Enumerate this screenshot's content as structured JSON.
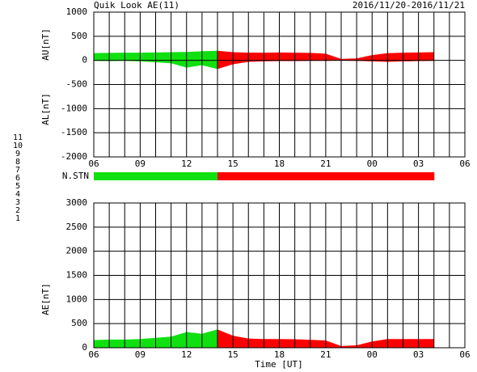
{
  "title": "Quik Look AE(11)",
  "date_range": "2016/11/20-2016/11/21",
  "x_title": "Time [UT]",
  "station_legend": [
    {
      "value": 11,
      "color": "#00d8d8"
    },
    {
      "value": 10,
      "color": "#e000e0"
    },
    {
      "value": 9,
      "color": "#4020c0"
    },
    {
      "value": 8,
      "color": "#e8e070"
    },
    {
      "value": 7,
      "color": "#10e010"
    },
    {
      "value": 6,
      "color": "#ff0000"
    },
    {
      "value": 5,
      "color": "#c8c8c8"
    },
    {
      "value": 4,
      "color": "#909090"
    },
    {
      "value": 3,
      "color": "#20a0a0"
    },
    {
      "value": 2,
      "color": "#a020a0"
    },
    {
      "value": 1,
      "color": "#2020c0"
    }
  ],
  "n_stn": {
    "label": "N.STN",
    "x": [
      6,
      7,
      8,
      9,
      10,
      11,
      12,
      13,
      14,
      15,
      16,
      17,
      18,
      19,
      20,
      21,
      22,
      23,
      24,
      25,
      26,
      27,
      28
    ],
    "values": [
      7,
      7,
      7,
      7,
      7,
      7,
      7,
      7,
      6,
      6,
      6,
      6,
      6,
      6,
      6,
      6,
      6,
      6,
      6,
      6,
      6,
      6,
      6
    ]
  },
  "chart_data": [
    {
      "type": "area",
      "y_titles": [
        "AU[nT]",
        "AL[nT]"
      ],
      "x": [
        6,
        7,
        8,
        9,
        10,
        11,
        12,
        13,
        14,
        15,
        16,
        17,
        18,
        19,
        20,
        21,
        22,
        23,
        24,
        25,
        26,
        27,
        28
      ],
      "series": [
        {
          "name": "AU",
          "values": [
            150,
            155,
            160,
            160,
            165,
            170,
            175,
            190,
            200,
            170,
            160,
            160,
            165,
            160,
            155,
            140,
            30,
            40,
            110,
            150,
            160,
            165,
            170
          ]
        },
        {
          "name": "AL",
          "values": [
            -10,
            -15,
            -10,
            -20,
            -40,
            -60,
            -150,
            -100,
            -180,
            -80,
            -30,
            -20,
            -15,
            -15,
            -10,
            -10,
            -5,
            -10,
            -20,
            -30,
            -20,
            -15,
            -10
          ]
        }
      ],
      "xlim": [
        6,
        30
      ],
      "xticks": [
        {
          "value": 6,
          "label": "06"
        },
        {
          "value": 9,
          "label": "09"
        },
        12,
        15,
        18,
        21,
        {
          "value": 24,
          "label": "00"
        },
        {
          "value": 27,
          "label": "03"
        },
        {
          "value": 30,
          "label": "06"
        }
      ],
      "xgrid": [
        7,
        8,
        10,
        11,
        13,
        14,
        16,
        17,
        19,
        20,
        22,
        23,
        25,
        26,
        28,
        29
      ],
      "ylim": [
        -2000,
        1000
      ],
      "yticks": [
        -2000,
        -1500,
        -1000,
        -500,
        0,
        500,
        1000
      ],
      "grid": true
    },
    {
      "type": "area",
      "y_titles": [
        "AE[nT]"
      ],
      "x": [
        6,
        7,
        8,
        9,
        10,
        11,
        12,
        13,
        14,
        15,
        16,
        17,
        18,
        19,
        20,
        21,
        22,
        23,
        24,
        25,
        26,
        27,
        28
      ],
      "series": [
        {
          "name": "AE",
          "values": [
            160,
            170,
            170,
            180,
            205,
            230,
            325,
            290,
            380,
            250,
            190,
            180,
            180,
            175,
            165,
            150,
            35,
            50,
            130,
            180,
            180,
            180,
            180
          ]
        }
      ],
      "xlim": [
        6,
        30
      ],
      "xticks": [
        {
          "value": 6,
          "label": "06"
        },
        {
          "value": 9,
          "label": "09"
        },
        12,
        15,
        18,
        21,
        {
          "value": 24,
          "label": "00"
        },
        {
          "value": 27,
          "label": "03"
        },
        {
          "value": 30,
          "label": "06"
        }
      ],
      "xgrid": [
        7,
        8,
        10,
        11,
        13,
        14,
        16,
        17,
        19,
        20,
        22,
        23,
        25,
        26,
        28,
        29
      ],
      "ylim": [
        0,
        3000
      ],
      "yticks": [
        0,
        500,
        1000,
        1500,
        2000,
        2500,
        3000
      ],
      "grid": true
    }
  ]
}
